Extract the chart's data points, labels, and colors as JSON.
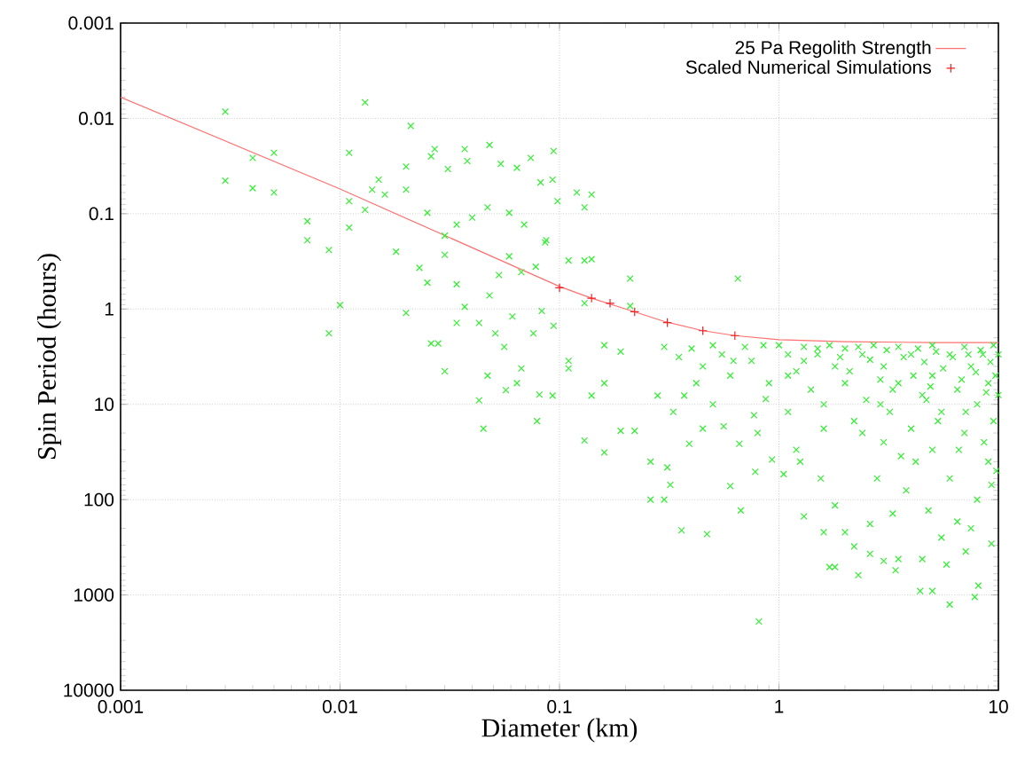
{
  "chart_data": {
    "type": "scatter",
    "xlabel": "Diameter (km)",
    "ylabel": "Spin Period (hours)",
    "log": "xy",
    "grid": true,
    "legend": "top right",
    "xlim": [
      0.001,
      10
    ],
    "ylim": [
      10000,
      0.001
    ],
    "xticks": [
      0.001,
      0.01,
      0.1,
      1,
      10
    ],
    "yticks": [
      0.001,
      0.01,
      0.1,
      1,
      10,
      100,
      1000,
      10000
    ],
    "series": [
      {
        "color": "#33ee33",
        "marker": "cross",
        "x": [
          1.1,
          1.3,
          1.5,
          1.9,
          2.1,
          2.3,
          2.6,
          2.9,
          3.1,
          3.3,
          3.7,
          4.1,
          4.3,
          4.6,
          4.9,
          5.2,
          5.6,
          6.2,
          6.8,
          7.3,
          7.9,
          8.3,
          8.8,
          9.2,
          9.7,
          2.4,
          3.6,
          5.3,
          6.6,
          8.6,
          9.8,
          1.6,
          2.9,
          4.7,
          7.1,
          0.003,
          0.013,
          0.021,
          0.003,
          0.004,
          0.005,
          0.004,
          0.005,
          0.0071,
          0.0071,
          0.0089,
          0.01,
          0.0089,
          0.011,
          0.011,
          0.011,
          0.013,
          0.014,
          0.015,
          0.016,
          0.018,
          0.02,
          0.02,
          0.02,
          0.023,
          0.025,
          0.026,
          0.027,
          0.025,
          0.03,
          0.03,
          0.031,
          0.037,
          0.038,
          0.048,
          0.04,
          0.034,
          0.034,
          0.037,
          0.034,
          0.043,
          0.047,
          0.059,
          0.054,
          0.064,
          0.074,
          0.082,
          0.069,
          0.086,
          0.098,
          0.048,
          0.053,
          0.059,
          0.067,
          0.078,
          0.083,
          0.051,
          0.061,
          0.076,
          0.094,
          0.026,
          0.028,
          0.03,
          0.043,
          0.045,
          0.047,
          0.056,
          0.057,
          0.064,
          0.067,
          0.079,
          0.081,
          0.093,
          0.094,
          0.093,
          0.12,
          0.14,
          0.13,
          0.11,
          0.13,
          0.14,
          0.13,
          0.21,
          0.087,
          0.65,
          0.21,
          0.11,
          0.11,
          0.14,
          0.16,
          0.19,
          0.19,
          0.22,
          0.16,
          0.28,
          0.37,
          0.45,
          0.56,
          0.66,
          0.77,
          0.87,
          0.13,
          0.16,
          0.26,
          0.26,
          0.3,
          0.32,
          0.31,
          0.36,
          0.47,
          0.39,
          0.6,
          0.67,
          0.78,
          0.81,
          0.93,
          1.05,
          1.25,
          1.3,
          1.55,
          1.6,
          1.7,
          1.8,
          1.8,
          2,
          2.2,
          2.3,
          2.6,
          2.6,
          3,
          3.4,
          3.5,
          4.5,
          4.4,
          5,
          6,
          5.8,
          7.1,
          7.8,
          8.1,
          9.3,
          9.3,
          0.3,
          0.35,
          0.4,
          0.45,
          0.5,
          0.55,
          0.6,
          0.7,
          0.75,
          0.85,
          0.9,
          1,
          1.1,
          1.2,
          1.3,
          1.4,
          1.5,
          1.6,
          1.7,
          1.8,
          2,
          2,
          2.2,
          2.4,
          2.5,
          2.7,
          3,
          3,
          3.2,
          3.5,
          3.5,
          4,
          4,
          4.2,
          4.5,
          5,
          5,
          5,
          5.5,
          6,
          6,
          6.5,
          7,
          7,
          7.5,
          8,
          8,
          8.5,
          9,
          9,
          9.5,
          9.5,
          10,
          10,
          0.33,
          0.42,
          0.5,
          0.62,
          0.8,
          1.1,
          1.2,
          2.8,
          3.8,
          4.8,
          6.5,
          7.5,
          5.5,
          3.3
        ],
        "values": [
          5,
          3.5,
          2.6,
          3.2,
          4.5,
          2.5,
          3.4,
          5.5,
          2.7,
          7,
          3.2,
          5,
          2.6,
          3.6,
          6.5,
          2.8,
          4.2,
          3.2,
          5.5,
          3,
          4.6,
          2.7,
          7.5,
          3.6,
          5,
          20,
          35,
          15,
          30,
          25,
          50,
          18,
          10,
          9,
          12,
          0.0085,
          0.0068,
          0.012,
          0.045,
          0.026,
          0.023,
          0.054,
          0.06,
          0.12,
          0.19,
          0.24,
          0.91,
          1.8,
          0.023,
          0.074,
          0.14,
          0.091,
          0.056,
          0.044,
          0.063,
          0.25,
          0.032,
          0.056,
          1.1,
          0.37,
          0.53,
          0.025,
          0.021,
          0.098,
          0.17,
          0.27,
          0.034,
          0.021,
          0.028,
          0.019,
          0.11,
          0.13,
          0.55,
          0.95,
          1.4,
          1.4,
          0.086,
          0.098,
          0.03,
          0.033,
          0.026,
          0.047,
          0.13,
          0.2,
          0.074,
          0.72,
          0.44,
          0.28,
          0.41,
          0.36,
          1.05,
          1.8,
          1.2,
          1.8,
          1.5,
          2.3,
          2.3,
          4.5,
          9.1,
          18,
          5,
          2.5,
          7.1,
          6,
          4.2,
          15,
          7.9,
          8.1,
          0.022,
          0.044,
          0.06,
          0.063,
          0.086,
          0.31,
          0.31,
          0.3,
          0.87,
          0.93,
          0.19,
          0.48,
          0.48,
          3.5,
          4.2,
          8.1,
          2.4,
          2.8,
          19,
          19,
          6,
          8.1,
          8.1,
          18,
          17,
          26,
          13,
          8.8,
          24,
          32,
          40,
          100,
          100,
          70,
          46,
          210,
          230,
          26,
          72,
          130,
          51,
          1900,
          38,
          54,
          40,
          150,
          60,
          220,
          510,
          510,
          115,
          220,
          310,
          620,
          180,
          370,
          440,
          550,
          420,
          420,
          910,
          910,
          1260,
          480,
          350,
          1050,
          800,
          290,
          70,
          2.5,
          3.2,
          2.6,
          4,
          2.4,
          3,
          5,
          2.5,
          3.5,
          2.4,
          6,
          2.4,
          3,
          4.5,
          2.5,
          7,
          3,
          10,
          2.4,
          4,
          2.6,
          6,
          15,
          3,
          9,
          2.4,
          4,
          25,
          12,
          2.5,
          6,
          3,
          18,
          40,
          8,
          2.4,
          5,
          30,
          12,
          3,
          60,
          7,
          2.5,
          20,
          4,
          10,
          100,
          3,
          6,
          40,
          2.4,
          15,
          3,
          8,
          12,
          6,
          10,
          3.5,
          20,
          12,
          30,
          60,
          80,
          130,
          170,
          200,
          250,
          140
        ]
      },
      {
        "type": "line",
        "name": "25 Pa Regolith Strength",
        "color": "#ff7070",
        "marker": "none",
        "x": [
          0.001,
          0.01,
          0.1,
          0.14,
          0.2,
          0.3,
          0.45,
          0.63,
          1,
          2,
          5,
          10
        ],
        "values": [
          0.006,
          0.055,
          0.58,
          0.77,
          1.0,
          1.35,
          1.69,
          1.9,
          2.1,
          2.2,
          2.25,
          2.25
        ]
      },
      {
        "type": "scatter",
        "name": "Scaled Numerical Simulations",
        "color": "#ee2222",
        "marker": "plus",
        "x": [
          0.1,
          0.14,
          0.17,
          0.22,
          0.31,
          0.45,
          0.63
        ],
        "values": [
          0.6,
          0.77,
          0.87,
          1.07,
          1.39,
          1.69,
          1.9
        ]
      }
    ]
  }
}
